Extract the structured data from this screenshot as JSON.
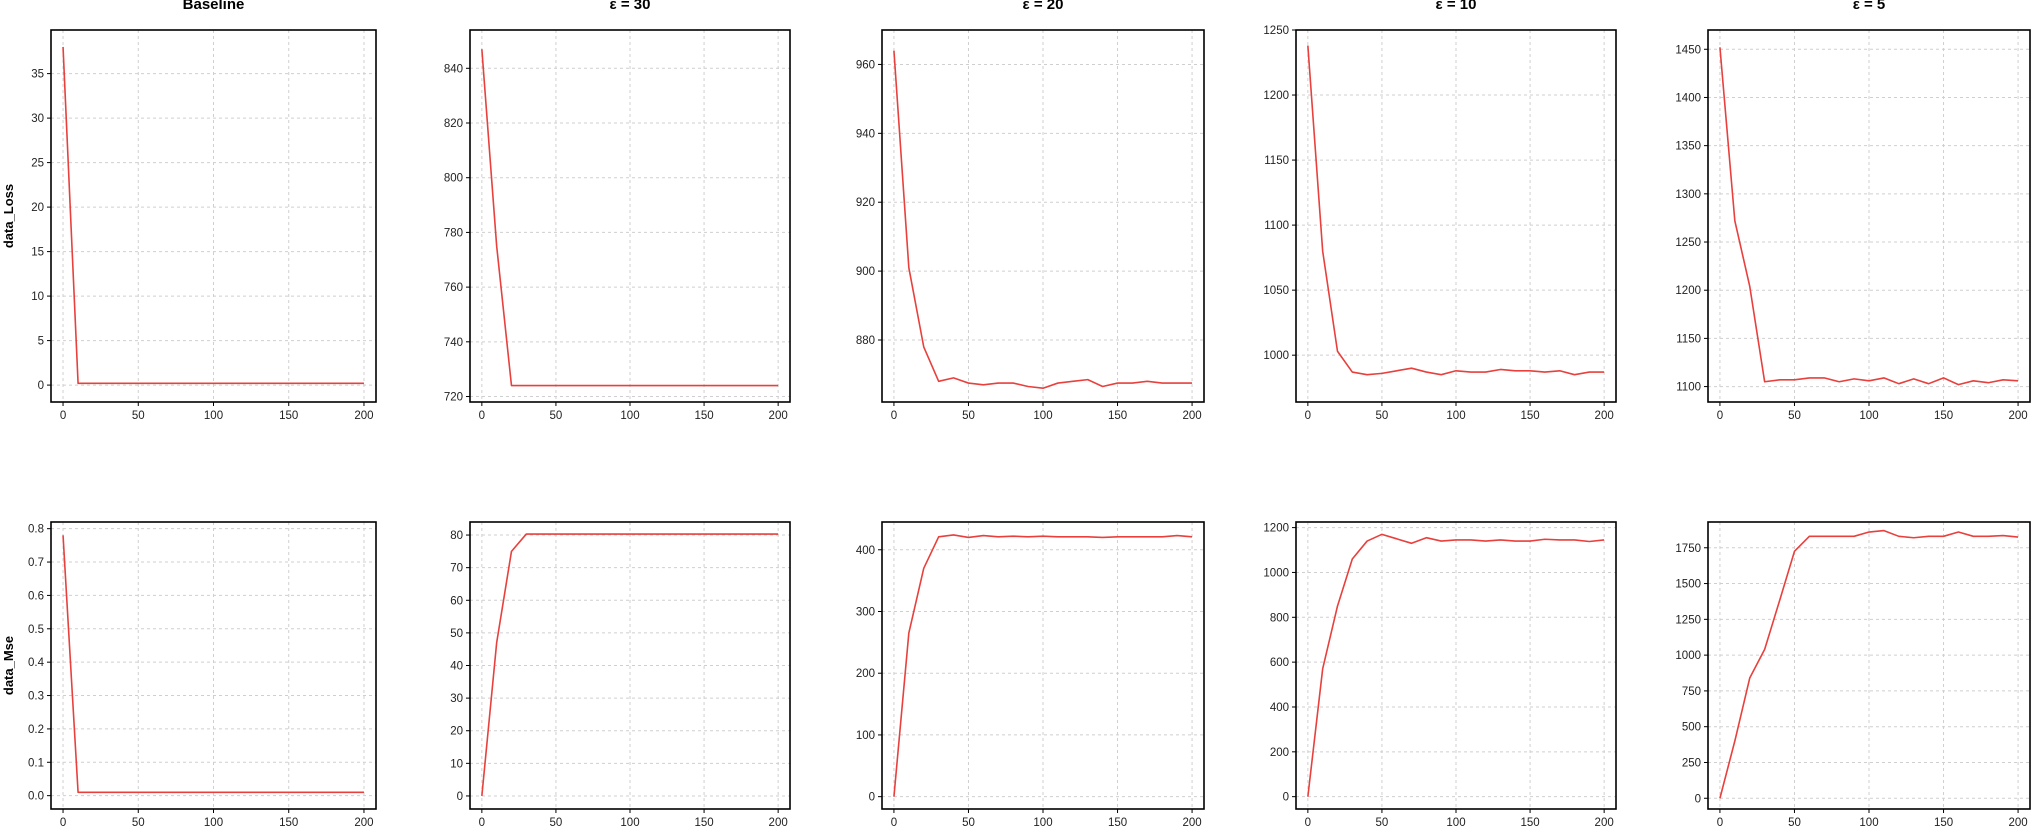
{
  "chart_data": [
    {
      "type": "line",
      "panel": "baseline-loss",
      "title": "Baseline",
      "ylabel": "data_Loss",
      "xlim": [
        -8,
        208
      ],
      "ylim": [
        -1.9,
        39.9
      ],
      "xticks": [
        "0",
        "50",
        "100",
        "150",
        "200"
      ],
      "yticks": [
        "0",
        "5",
        "10",
        "15",
        "20",
        "25",
        "30",
        "35"
      ],
      "series": [
        {
          "color": "#e8403c",
          "x": [
            0,
            10,
            20,
            30,
            40,
            50,
            60,
            70,
            80,
            90,
            100,
            110,
            120,
            130,
            140,
            150,
            160,
            170,
            180,
            190,
            200
          ],
          "y": [
            38,
            0.2,
            0.2,
            0.2,
            0.2,
            0.2,
            0.2,
            0.2,
            0.2,
            0.2,
            0.2,
            0.2,
            0.2,
            0.2,
            0.2,
            0.2,
            0.2,
            0.2,
            0.2,
            0.2,
            0.2
          ]
        }
      ]
    },
    {
      "type": "line",
      "panel": "eps30-loss",
      "title": "ε = 30",
      "ylabel": "",
      "xlim": [
        -8,
        208
      ],
      "ylim": [
        718,
        854
      ],
      "xticks": [
        "0",
        "50",
        "100",
        "150",
        "200"
      ],
      "yticks": [
        "720",
        "740",
        "760",
        "780",
        "800",
        "820",
        "840"
      ],
      "series": [
        {
          "color": "#e8403c",
          "x": [
            0,
            10,
            20,
            30,
            40,
            50,
            60,
            70,
            80,
            90,
            100,
            110,
            120,
            130,
            140,
            150,
            160,
            170,
            180,
            190,
            200
          ],
          "y": [
            847,
            775,
            724,
            724,
            724,
            724,
            724,
            724,
            724,
            724,
            724,
            724,
            724,
            724,
            724,
            724,
            724,
            724,
            724,
            724,
            724
          ]
        }
      ]
    },
    {
      "type": "line",
      "panel": "eps20-loss",
      "title": "ε = 20",
      "ylabel": "",
      "xlim": [
        -8,
        208
      ],
      "ylim": [
        862,
        970
      ],
      "xticks": [
        "0",
        "50",
        "100",
        "150",
        "200"
      ],
      "yticks": [
        "880",
        "900",
        "920",
        "940",
        "960"
      ],
      "series": [
        {
          "color": "#e8403c",
          "x": [
            0,
            10,
            20,
            30,
            40,
            50,
            60,
            70,
            80,
            90,
            100,
            110,
            120,
            130,
            140,
            150,
            160,
            170,
            180,
            190,
            200
          ],
          "y": [
            964,
            901,
            878,
            868,
            869,
            867.5,
            867,
            867.5,
            867.5,
            866.5,
            866,
            867.5,
            868,
            868.5,
            866.5,
            867.5,
            867.5,
            868,
            867.5,
            867.5,
            867.5
          ]
        }
      ]
    },
    {
      "type": "line",
      "panel": "eps10-loss",
      "title": "ε = 10",
      "ylabel": "",
      "xlim": [
        -8,
        208
      ],
      "ylim": [
        964,
        1250
      ],
      "xticks": [
        "0",
        "50",
        "100",
        "150",
        "200"
      ],
      "yticks": [
        "1000",
        "1050",
        "1100",
        "1150",
        "1200",
        "1250"
      ],
      "series": [
        {
          "color": "#e8403c",
          "x": [
            0,
            10,
            20,
            30,
            40,
            50,
            60,
            70,
            80,
            90,
            100,
            110,
            120,
            130,
            140,
            150,
            160,
            170,
            180,
            190,
            200
          ],
          "y": [
            1238,
            1080,
            1003,
            987,
            985,
            986,
            988,
            990,
            987,
            985,
            988,
            987,
            987,
            989,
            988,
            988,
            987,
            988,
            985,
            987,
            987
          ]
        }
      ]
    },
    {
      "type": "line",
      "panel": "eps5-loss",
      "title": "ε = 5",
      "ylabel": "",
      "xlim": [
        -8,
        208
      ],
      "ylim": [
        1084,
        1470
      ],
      "xticks": [
        "0",
        "50",
        "100",
        "150",
        "200"
      ],
      "yticks": [
        "1100",
        "1150",
        "1200",
        "1250",
        "1300",
        "1350",
        "1400",
        "1450"
      ],
      "series": [
        {
          "color": "#e8403c",
          "x": [
            0,
            10,
            20,
            30,
            40,
            50,
            60,
            70,
            80,
            90,
            100,
            110,
            120,
            130,
            140,
            150,
            160,
            170,
            180,
            190,
            200
          ],
          "y": [
            1452,
            1272,
            1204,
            1105,
            1107,
            1107,
            1109,
            1109,
            1105,
            1108,
            1106,
            1109,
            1103,
            1108,
            1103,
            1109,
            1102,
            1106,
            1104,
            1107,
            1106
          ]
        }
      ]
    },
    {
      "type": "line",
      "panel": "baseline-mse",
      "title": "",
      "ylabel": "data_Mse",
      "xlim": [
        -8,
        208
      ],
      "ylim": [
        -0.04,
        0.82
      ],
      "xticks": [
        "0",
        "50",
        "100",
        "150",
        "200"
      ],
      "yticks": [
        "0.0",
        "0.1",
        "0.2",
        "0.3",
        "0.4",
        "0.5",
        "0.6",
        "0.7",
        "0.8"
      ],
      "series": [
        {
          "color": "#e8403c",
          "x": [
            0,
            10,
            20,
            30,
            40,
            50,
            60,
            70,
            80,
            90,
            100,
            110,
            120,
            130,
            140,
            150,
            160,
            170,
            180,
            190,
            200
          ],
          "y": [
            0.78,
            0.01,
            0.01,
            0.01,
            0.01,
            0.01,
            0.01,
            0.01,
            0.01,
            0.01,
            0.01,
            0.01,
            0.01,
            0.01,
            0.01,
            0.01,
            0.01,
            0.01,
            0.01,
            0.01,
            0.01
          ]
        }
      ]
    },
    {
      "type": "line",
      "panel": "eps30-mse",
      "title": "",
      "ylabel": "",
      "xlim": [
        -8,
        208
      ],
      "ylim": [
        -4,
        84
      ],
      "xticks": [
        "0",
        "50",
        "100",
        "150",
        "200"
      ],
      "yticks": [
        "0",
        "10",
        "20",
        "30",
        "40",
        "50",
        "60",
        "70",
        "80"
      ],
      "series": [
        {
          "color": "#e8403c",
          "x": [
            0,
            10,
            20,
            30,
            40,
            50,
            60,
            70,
            80,
            90,
            100,
            110,
            120,
            130,
            140,
            150,
            160,
            170,
            180,
            190,
            200
          ],
          "y": [
            0,
            47,
            75,
            80.3,
            80.3,
            80.3,
            80.3,
            80.3,
            80.3,
            80.3,
            80.3,
            80.3,
            80.3,
            80.3,
            80.3,
            80.3,
            80.3,
            80.3,
            80.3,
            80.3,
            80.3
          ]
        }
      ]
    },
    {
      "type": "line",
      "panel": "eps20-mse",
      "title": "",
      "ylabel": "",
      "xlim": [
        -8,
        208
      ],
      "ylim": [
        -20,
        445
      ],
      "xticks": [
        "0",
        "50",
        "100",
        "150",
        "200"
      ],
      "yticks": [
        "0",
        "100",
        "200",
        "300",
        "400"
      ],
      "series": [
        {
          "color": "#e8403c",
          "x": [
            0,
            10,
            20,
            30,
            40,
            50,
            60,
            70,
            80,
            90,
            100,
            110,
            120,
            130,
            140,
            150,
            160,
            170,
            180,
            190,
            200
          ],
          "y": [
            0,
            265,
            370,
            421,
            424,
            420,
            423,
            421,
            422,
            421,
            422,
            421,
            421,
            421,
            420,
            421,
            421,
            421,
            421,
            423,
            421
          ]
        }
      ]
    },
    {
      "type": "line",
      "panel": "eps10-mse",
      "title": "",
      "ylabel": "",
      "xlim": [
        -8,
        208
      ],
      "ylim": [
        -55,
        1225
      ],
      "xticks": [
        "0",
        "50",
        "100",
        "150",
        "200"
      ],
      "yticks": [
        "0",
        "200",
        "400",
        "600",
        "800",
        "1000",
        "1200"
      ],
      "series": [
        {
          "color": "#e8403c",
          "x": [
            0,
            10,
            20,
            30,
            40,
            50,
            60,
            70,
            80,
            90,
            100,
            110,
            120,
            130,
            140,
            150,
            160,
            170,
            180,
            190,
            200
          ],
          "y": [
            0,
            570,
            850,
            1060,
            1140,
            1170,
            1150,
            1130,
            1155,
            1140,
            1145,
            1145,
            1140,
            1145,
            1140,
            1140,
            1148,
            1145,
            1145,
            1138,
            1145
          ]
        }
      ]
    },
    {
      "type": "line",
      "panel": "eps5-mse",
      "title": "",
      "ylabel": "",
      "xlim": [
        -8,
        208
      ],
      "ylim": [
        -75,
        1930
      ],
      "xticks": [
        "0",
        "50",
        "100",
        "150",
        "200"
      ],
      "yticks": [
        "0",
        "250",
        "500",
        "750",
        "1000",
        "1250",
        "1500",
        "1750"
      ],
      "series": [
        {
          "color": "#e8403c",
          "x": [
            0,
            10,
            20,
            30,
            40,
            50,
            60,
            70,
            80,
            90,
            100,
            110,
            120,
            130,
            140,
            150,
            160,
            170,
            180,
            190,
            200
          ],
          "y": [
            0,
            400,
            840,
            1040,
            1380,
            1725,
            1830,
            1830,
            1830,
            1830,
            1860,
            1870,
            1830,
            1820,
            1830,
            1830,
            1860,
            1830,
            1830,
            1835,
            1825
          ]
        }
      ]
    }
  ]
}
